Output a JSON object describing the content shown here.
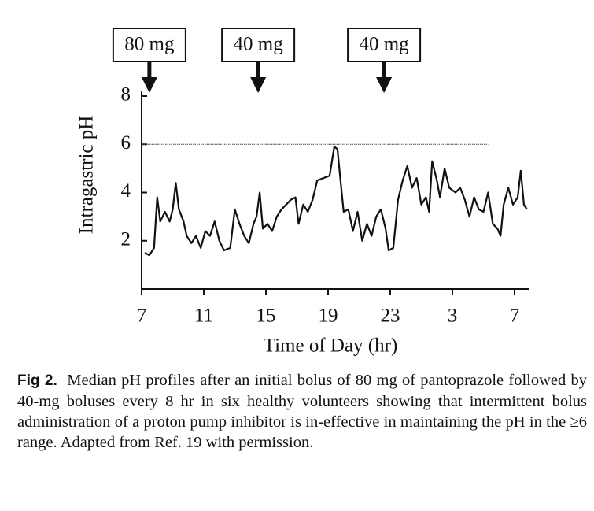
{
  "chart_data": {
    "type": "line",
    "ylabel": "Intragastric pH",
    "xlabel": "Time of Day (hr)",
    "xlim": [
      7,
      32
    ],
    "ylim": [
      0,
      8
    ],
    "xticks": [
      7,
      11,
      15,
      19,
      23,
      {
        "value": 27,
        "label": "3"
      },
      {
        "value": 31,
        "label": "7"
      }
    ],
    "yticks": [
      2,
      4,
      6,
      8
    ],
    "color": "#111111",
    "reference_line": {
      "y": 6,
      "x": [
        7,
        29.3
      ]
    },
    "annotations": [
      {
        "text": "80 mg",
        "x": 7.5
      },
      {
        "text": "40 mg",
        "x": 14.5
      },
      {
        "text": "40 mg",
        "x": 22.6
      }
    ],
    "x": [
      7.2,
      7.5,
      7.8,
      8.0,
      8.2,
      8.5,
      8.8,
      9.0,
      9.2,
      9.4,
      9.7,
      9.9,
      10.2,
      10.5,
      10.8,
      11.1,
      11.4,
      11.7,
      12.0,
      12.3,
      12.7,
      13.0,
      13.3,
      13.6,
      13.9,
      14.2,
      14.4,
      14.6,
      14.8,
      15.1,
      15.4,
      15.7,
      16.0,
      16.3,
      16.6,
      16.9,
      17.1,
      17.4,
      17.7,
      18.0,
      18.3,
      18.7,
      19.1,
      19.4,
      19.6,
      19.8,
      20.0,
      20.3,
      20.6,
      20.9,
      21.2,
      21.5,
      21.8,
      22.1,
      22.4,
      22.7,
      22.9,
      23.2,
      23.5,
      23.8,
      24.1,
      24.4,
      24.7,
      25.0,
      25.3,
      25.5,
      25.7,
      26.0,
      26.2,
      26.5,
      26.8,
      27.2,
      27.5,
      27.8,
      28.1,
      28.4,
      28.7,
      29.0,
      29.3,
      29.6,
      29.9,
      30.1,
      30.3,
      30.6,
      30.9,
      31.2,
      31.4,
      31.6,
      31.8
    ],
    "values": [
      1.5,
      1.4,
      1.7,
      3.8,
      2.8,
      3.2,
      2.8,
      3.3,
      4.4,
      3.3,
      2.8,
      2.2,
      1.9,
      2.2,
      1.7,
      2.4,
      2.2,
      2.8,
      2.0,
      1.6,
      1.7,
      3.3,
      2.7,
      2.2,
      1.9,
      2.7,
      3.0,
      4.0,
      2.5,
      2.7,
      2.4,
      3.0,
      3.3,
      3.5,
      3.7,
      3.8,
      2.7,
      3.5,
      3.2,
      3.7,
      4.5,
      4.6,
      4.7,
      5.9,
      5.8,
      4.5,
      3.2,
      3.3,
      2.4,
      3.2,
      2.0,
      2.7,
      2.2,
      3.0,
      3.3,
      2.5,
      1.6,
      1.7,
      3.7,
      4.5,
      5.1,
      4.2,
      4.6,
      3.5,
      3.8,
      3.2,
      5.3,
      4.5,
      3.8,
      5.0,
      4.2,
      4.0,
      4.2,
      3.7,
      3.0,
      3.8,
      3.3,
      3.2,
      4.0,
      2.7,
      2.5,
      2.2,
      3.5,
      4.2,
      3.5,
      3.8,
      4.9,
      3.5,
      3.3
    ]
  },
  "caption": {
    "label": "Fig 2.",
    "text": "Median pH profiles after an initial bolus of 80 mg of pantoprazole followed by 40-mg boluses every 8 hr in six healthy volunteers showing that intermittent bolus administration of a proton pump inhibitor is in-effective in maintaining the pH in the ≥6 range. Adapted from Ref. 19 with permission."
  }
}
